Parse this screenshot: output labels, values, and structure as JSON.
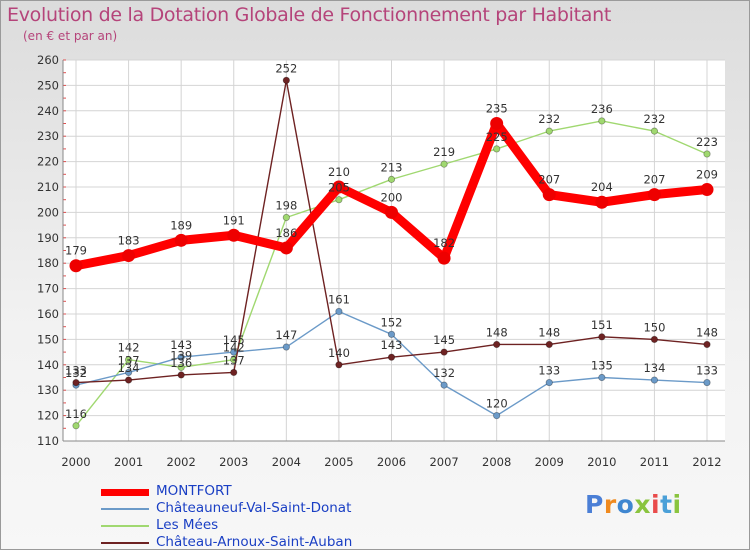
{
  "title": "Evolution de la Dotation Globale de Fonctionnement par Habitant",
  "subtitle": "(en € et par an)",
  "logo": {
    "letters": [
      "P",
      "r",
      "o",
      "x",
      "i",
      "t",
      "i"
    ],
    "colors": [
      "#4b7fd6",
      "#f08a1e",
      "#3f86d0",
      "#8ac43f",
      "#e94b4b",
      "#4aa0d8",
      "#8ac43f"
    ]
  },
  "chart_data": {
    "type": "line",
    "title": "Evolution de la Dotation Globale de Fonctionnement par Habitant",
    "ylabel": "(en € et par an)",
    "xlabel": "",
    "x": [
      2000,
      2001,
      2002,
      2003,
      2004,
      2005,
      2006,
      2007,
      2008,
      2009,
      2010,
      2011,
      2012
    ],
    "ylim": [
      110,
      260
    ],
    "yticks": [
      110,
      120,
      130,
      140,
      150,
      160,
      170,
      180,
      190,
      200,
      210,
      220,
      230,
      240,
      250,
      260
    ],
    "grid": true,
    "legend_position": "bottom",
    "series": [
      {
        "name": "MONTFORT",
        "color": "#ff0000",
        "values": [
          179,
          183,
          189,
          191,
          186,
          210,
          200,
          182,
          235,
          207,
          204,
          207,
          209
        ]
      },
      {
        "name": "Châteauneuf-Val-Saint-Donat",
        "color": "#6b9ac8",
        "values": [
          132,
          137,
          143,
          145,
          147,
          161,
          152,
          132,
          120,
          133,
          135,
          134,
          133
        ]
      },
      {
        "name": "Les Mées",
        "color": "#a0d870",
        "values": [
          116,
          142,
          139,
          142,
          198,
          205,
          213,
          219,
          225,
          232,
          236,
          232,
          223
        ]
      },
      {
        "name": "Château-Arnoux-Saint-Auban",
        "color": "#6e2222",
        "values": [
          133,
          134,
          136,
          137,
          252,
          140,
          143,
          145,
          148,
          148,
          151,
          150,
          148
        ]
      }
    ]
  }
}
